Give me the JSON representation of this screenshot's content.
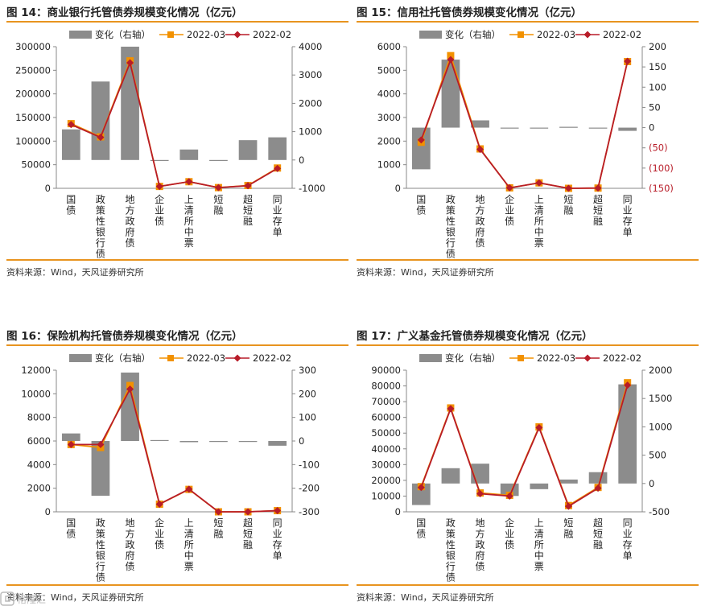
{
  "source_label": "资料来源：Wind，天风证券研究所",
  "watermark": "格隆汇",
  "legend": {
    "bar": "变化（右轴）",
    "line1": "2022-03",
    "line2": "2022-02"
  },
  "colors": {
    "bar": "#8c8c8c",
    "line1": "#f29100",
    "line2": "#b81c28",
    "rule": "#e8941f"
  },
  "chart_data": [
    {
      "type": "bar+line",
      "title": "图 14：商业银行托管债券规模变化情况（亿元）",
      "categories": [
        "国债",
        "政策性银行债",
        "地方政府债",
        "企业债",
        "上清所中票",
        "短融",
        "超短融",
        "同业存单"
      ],
      "ylim_left": [
        0,
        300000
      ],
      "yticks_left": [
        0,
        50000,
        100000,
        150000,
        200000,
        250000,
        300000
      ],
      "ylim_right": [
        -1000,
        4000
      ],
      "yticks_right": [
        -1000,
        0,
        1000,
        2000,
        3000,
        4000
      ],
      "right_negative_style": "minus",
      "series": [
        {
          "name": "变化（右轴）",
          "axis": "right",
          "values": [
            1080,
            2770,
            4000,
            -30,
            370,
            -30,
            700,
            800
          ]
        },
        {
          "name": "2022-03",
          "axis": "left",
          "values": [
            137000,
            109000,
            270000,
            4000,
            14000,
            1500,
            6000,
            43000
          ]
        },
        {
          "name": "2022-02",
          "axis": "left",
          "values": [
            135000,
            108000,
            266000,
            4000,
            14000,
            1500,
            5500,
            42000
          ]
        }
      ]
    },
    {
      "type": "bar+line",
      "title": "图 15：信用社托管债券规模变化情况（亿元）",
      "categories": [
        "国债",
        "政策性银行债",
        "地方政府债",
        "企业债",
        "上清所中票",
        "短融",
        "超短融",
        "同业存单"
      ],
      "ylim_left": [
        0,
        6000
      ],
      "yticks_left": [
        0,
        1000,
        2000,
        3000,
        4000,
        5000,
        6000
      ],
      "ylim_right": [
        -150,
        200
      ],
      "yticks_right": [
        -150,
        -100,
        -50,
        0,
        50,
        100,
        150,
        200
      ],
      "right_negative_style": "paren",
      "series": [
        {
          "name": "变化（右轴）",
          "axis": "right",
          "values": [
            -103,
            168,
            18,
            -1,
            -1,
            2,
            -1,
            -8
          ]
        },
        {
          "name": "2022-03",
          "axis": "left",
          "values": [
            1950,
            5620,
            1670,
            20,
            230,
            0,
            10,
            5370
          ]
        },
        {
          "name": "2022-02",
          "axis": "left",
          "values": [
            2050,
            5450,
            1650,
            20,
            230,
            0,
            10,
            5380
          ]
        }
      ]
    },
    {
      "type": "bar+line",
      "title": "图 16：保险机构托管债券规模变化情况（亿元）",
      "categories": [
        "国债",
        "政策性银行债",
        "地方政府债",
        "企业债",
        "上清所中票",
        "短融",
        "超短融",
        "同业存单"
      ],
      "ylim_left": [
        0,
        12000
      ],
      "yticks_left": [
        0,
        2000,
        4000,
        6000,
        8000,
        10000,
        12000
      ],
      "ylim_right": [
        -300,
        300
      ],
      "yticks_right": [
        -300,
        -200,
        -100,
        0,
        100,
        200,
        300
      ],
      "right_negative_style": "minus",
      "series": [
        {
          "name": "变化（右轴）",
          "axis": "right",
          "values": [
            32,
            -232,
            290,
            4,
            -5,
            -2,
            -2,
            -20
          ]
        },
        {
          "name": "2022-03",
          "axis": "left",
          "values": [
            5700,
            5450,
            10700,
            650,
            1900,
            0,
            0,
            100
          ]
        },
        {
          "name": "2022-02",
          "axis": "left",
          "values": [
            5700,
            5700,
            10400,
            650,
            1920,
            0,
            0,
            100
          ]
        }
      ]
    },
    {
      "type": "bar+line",
      "title": "图 17：广义基金托管债券规模变化情况（亿元）",
      "categories": [
        "国债",
        "政策性银行债",
        "地方政府债",
        "企业债",
        "上清所中票",
        "短融",
        "超短融",
        "同业存单"
      ],
      "ylim_left": [
        0,
        90000
      ],
      "yticks_left": [
        0,
        10000,
        20000,
        30000,
        40000,
        50000,
        60000,
        70000,
        80000,
        90000
      ],
      "ylim_right": [
        -500,
        2000
      ],
      "yticks_right": [
        -500,
        0,
        500,
        1000,
        1500,
        2000
      ],
      "right_negative_style": "minus",
      "series": [
        {
          "name": "变化（右轴）",
          "axis": "right",
          "values": [
            -380,
            270,
            350,
            -220,
            -100,
            70,
            200,
            1750
          ]
        },
        {
          "name": "2022-03",
          "axis": "left",
          "values": [
            16000,
            66000,
            12000,
            10500,
            54000,
            4000,
            15500,
            82000
          ]
        },
        {
          "name": "2022-02",
          "axis": "left",
          "values": [
            15500,
            65500,
            11500,
            10000,
            53500,
            3500,
            15000,
            80500
          ]
        }
      ]
    }
  ]
}
